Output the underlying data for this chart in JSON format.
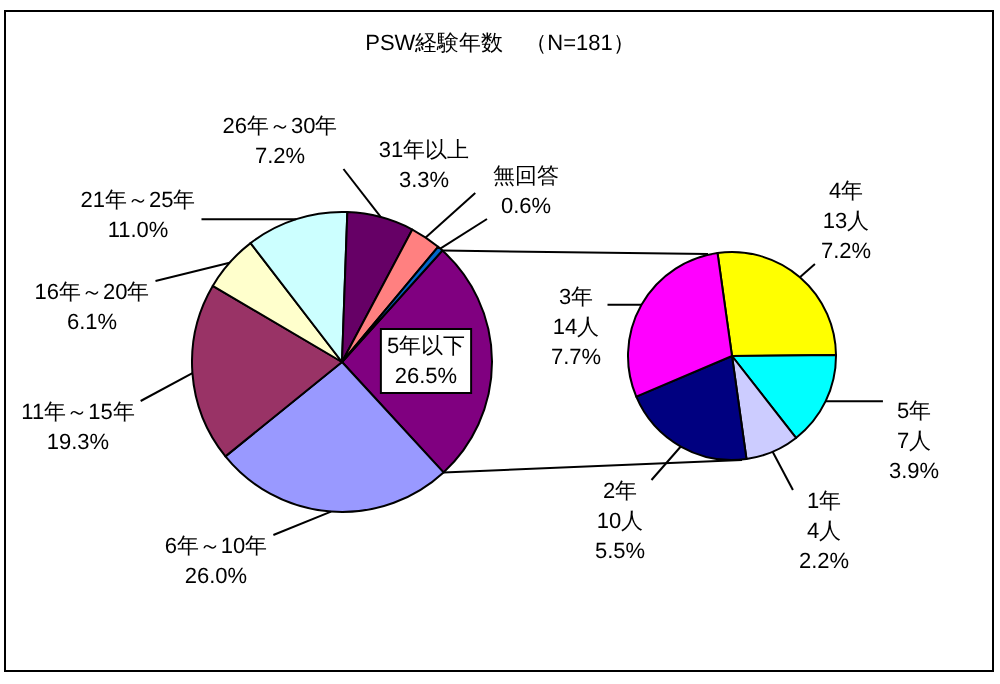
{
  "chart_data": [
    {
      "type": "pie",
      "title": "PSW経験年数　（N=181）",
      "categories": [
        "5年以下",
        "6年～10年",
        "11年～15年",
        "16年～20年",
        "21年～25年",
        "26年～30年",
        "31年以上",
        "無回答"
      ],
      "values": [
        26.5,
        26.0,
        19.3,
        6.1,
        11.0,
        7.2,
        3.3,
        0.6
      ],
      "colors": [
        "#800080",
        "#9999ff",
        "#993366",
        "#ffffcc",
        "#ccffff",
        "#660066",
        "#ff8080",
        "#0066cc"
      ],
      "value_labels": [
        "26.5%",
        "26.0%",
        "19.3%",
        "6.1%",
        "11.0%",
        "7.2%",
        "3.3%",
        "0.6%"
      ]
    },
    {
      "type": "pie",
      "categories": [
        "4年",
        "5年",
        "1年",
        "2年",
        "3年"
      ],
      "values": [
        13,
        7,
        4,
        10,
        14
      ],
      "colors": [
        "#ffff00",
        "#00ffff",
        "#ccccff",
        "#000080",
        "#ff00ff"
      ],
      "value_labels": [
        "13人\n7.2%",
        "7人\n3.9%",
        "4人\n2.2%",
        "10人\n5.5%",
        "14人\n7.7%"
      ]
    }
  ]
}
